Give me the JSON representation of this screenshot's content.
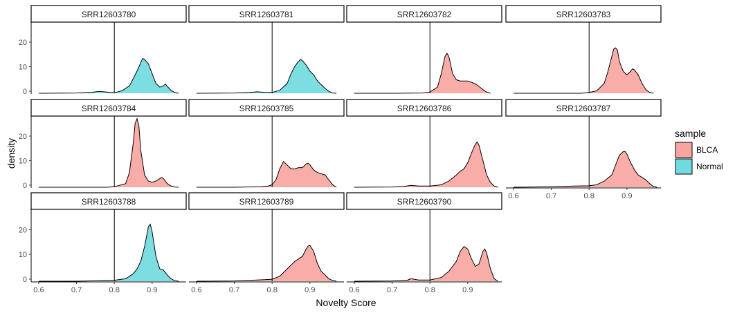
{
  "chart_data": {
    "type": "area",
    "xlabel": "Novelty Score",
    "ylabel": "density",
    "vline": 0.8,
    "xlim": [
      0.58,
      0.99
    ],
    "ylim": [
      0,
      29
    ],
    "x_ticks": [
      "0.6",
      "0.7",
      "0.8",
      "0.9"
    ],
    "y_ticks": [
      "0",
      "10",
      "20"
    ],
    "legend": {
      "title": "sample",
      "position": "right",
      "entries": [
        {
          "label": "BLCA",
          "color": "#F8A4A0"
        },
        {
          "label": "Normal",
          "color": "#6FDADF"
        }
      ]
    },
    "panels": [
      {
        "id": "SRR12603780",
        "group": "Normal",
        "curve": [
          [
            0.6,
            0
          ],
          [
            0.7,
            0.1
          ],
          [
            0.74,
            0.4
          ],
          [
            0.76,
            0.8
          ],
          [
            0.78,
            0.5
          ],
          [
            0.8,
            0.2
          ],
          [
            0.82,
            1.0
          ],
          [
            0.84,
            3.0
          ],
          [
            0.86,
            9.0
          ],
          [
            0.87,
            12.5
          ],
          [
            0.875,
            14.2
          ],
          [
            0.88,
            13.8
          ],
          [
            0.89,
            12.0
          ],
          [
            0.9,
            8.0
          ],
          [
            0.91,
            4.0
          ],
          [
            0.92,
            2.5
          ],
          [
            0.93,
            3.0
          ],
          [
            0.935,
            3.8
          ],
          [
            0.94,
            2.8
          ],
          [
            0.95,
            1.2
          ],
          [
            0.96,
            0.3
          ],
          [
            0.97,
            0
          ]
        ]
      },
      {
        "id": "SRR12603781",
        "group": "Normal",
        "curve": [
          [
            0.6,
            0
          ],
          [
            0.7,
            0.1
          ],
          [
            0.74,
            0.3
          ],
          [
            0.76,
            0.6
          ],
          [
            0.78,
            0.4
          ],
          [
            0.8,
            0.3
          ],
          [
            0.82,
            1.2
          ],
          [
            0.84,
            4.0
          ],
          [
            0.85,
            8.0
          ],
          [
            0.86,
            11.0
          ],
          [
            0.87,
            13.0
          ],
          [
            0.875,
            13.8
          ],
          [
            0.88,
            13.3
          ],
          [
            0.89,
            11.5
          ],
          [
            0.9,
            9.0
          ],
          [
            0.91,
            7.5
          ],
          [
            0.92,
            5.0
          ],
          [
            0.93,
            3.5
          ],
          [
            0.94,
            2.0
          ],
          [
            0.95,
            0.8
          ],
          [
            0.96,
            0.1
          ],
          [
            0.97,
            0
          ]
        ]
      },
      {
        "id": "SRR12603782",
        "group": "BLCA",
        "curve": [
          [
            0.6,
            0
          ],
          [
            0.7,
            0
          ],
          [
            0.78,
            0.1
          ],
          [
            0.8,
            0.5
          ],
          [
            0.82,
            2.5
          ],
          [
            0.83,
            8.0
          ],
          [
            0.84,
            15.0
          ],
          [
            0.845,
            16.3
          ],
          [
            0.85,
            15.0
          ],
          [
            0.86,
            8.0
          ],
          [
            0.87,
            5.5
          ],
          [
            0.88,
            5.0
          ],
          [
            0.89,
            5.0
          ],
          [
            0.9,
            5.0
          ],
          [
            0.91,
            4.5
          ],
          [
            0.92,
            3.8
          ],
          [
            0.93,
            2.8
          ],
          [
            0.94,
            1.5
          ],
          [
            0.95,
            0.5
          ],
          [
            0.96,
            0
          ]
        ]
      },
      {
        "id": "SRR12603783",
        "group": "BLCA",
        "curve": [
          [
            0.6,
            0
          ],
          [
            0.7,
            0
          ],
          [
            0.78,
            0
          ],
          [
            0.8,
            0.3
          ],
          [
            0.82,
            1.0
          ],
          [
            0.84,
            4.0
          ],
          [
            0.85,
            9.0
          ],
          [
            0.86,
            15.0
          ],
          [
            0.865,
            18.0
          ],
          [
            0.87,
            18.5
          ],
          [
            0.875,
            17.5
          ],
          [
            0.88,
            13.0
          ],
          [
            0.89,
            9.0
          ],
          [
            0.9,
            7.5
          ],
          [
            0.91,
            9.0
          ],
          [
            0.915,
            10.0
          ],
          [
            0.92,
            9.5
          ],
          [
            0.93,
            7.5
          ],
          [
            0.94,
            4.0
          ],
          [
            0.95,
            1.5
          ],
          [
            0.96,
            0.3
          ],
          [
            0.97,
            0
          ]
        ]
      },
      {
        "id": "SRR12603784",
        "group": "BLCA",
        "curve": [
          [
            0.6,
            0
          ],
          [
            0.7,
            0
          ],
          [
            0.78,
            0
          ],
          [
            0.8,
            0.2
          ],
          [
            0.83,
            1.5
          ],
          [
            0.84,
            6.0
          ],
          [
            0.85,
            18.0
          ],
          [
            0.855,
            26.0
          ],
          [
            0.86,
            28.0
          ],
          [
            0.865,
            25.0
          ],
          [
            0.87,
            15.0
          ],
          [
            0.88,
            5.0
          ],
          [
            0.89,
            2.5
          ],
          [
            0.9,
            2.0
          ],
          [
            0.91,
            2.5
          ],
          [
            0.92,
            3.5
          ],
          [
            0.925,
            4.0
          ],
          [
            0.93,
            3.5
          ],
          [
            0.94,
            1.5
          ],
          [
            0.95,
            0.5
          ],
          [
            0.96,
            0.1
          ],
          [
            0.97,
            0
          ]
        ]
      },
      {
        "id": "SRR12603785",
        "group": "BLCA",
        "curve": [
          [
            0.6,
            0
          ],
          [
            0.7,
            0
          ],
          [
            0.77,
            0.2
          ],
          [
            0.79,
            0.5
          ],
          [
            0.8,
            1.0
          ],
          [
            0.81,
            3.0
          ],
          [
            0.82,
            7.5
          ],
          [
            0.83,
            10.5
          ],
          [
            0.84,
            9.0
          ],
          [
            0.85,
            7.5
          ],
          [
            0.86,
            7.5
          ],
          [
            0.87,
            8.0
          ],
          [
            0.88,
            8.0
          ],
          [
            0.89,
            9.5
          ],
          [
            0.895,
            9.8
          ],
          [
            0.9,
            9.2
          ],
          [
            0.91,
            7.0
          ],
          [
            0.92,
            6.0
          ],
          [
            0.93,
            5.5
          ],
          [
            0.94,
            5.0
          ],
          [
            0.95,
            3.0
          ],
          [
            0.96,
            1.0
          ],
          [
            0.97,
            0
          ]
        ]
      },
      {
        "id": "SRR12603786",
        "group": "BLCA",
        "curve": [
          [
            0.6,
            0
          ],
          [
            0.7,
            0.1
          ],
          [
            0.73,
            0.3
          ],
          [
            0.75,
            0.8
          ],
          [
            0.77,
            0.5
          ],
          [
            0.8,
            0.5
          ],
          [
            0.83,
            1.0
          ],
          [
            0.85,
            2.5
          ],
          [
            0.87,
            5.0
          ],
          [
            0.88,
            6.5
          ],
          [
            0.89,
            7.5
          ],
          [
            0.9,
            10.0
          ],
          [
            0.91,
            14.0
          ],
          [
            0.92,
            17.5
          ],
          [
            0.925,
            18.5
          ],
          [
            0.93,
            17.0
          ],
          [
            0.94,
            11.0
          ],
          [
            0.95,
            5.0
          ],
          [
            0.96,
            2.0
          ],
          [
            0.97,
            0.5
          ],
          [
            0.98,
            0
          ]
        ]
      },
      {
        "id": "SRR12603787",
        "group": "BLCA",
        "curve": [
          [
            0.6,
            0
          ],
          [
            0.7,
            0.2
          ],
          [
            0.76,
            0.5
          ],
          [
            0.8,
            0.6
          ],
          [
            0.82,
            1.0
          ],
          [
            0.84,
            2.5
          ],
          [
            0.86,
            5.0
          ],
          [
            0.87,
            9.0
          ],
          [
            0.88,
            13.0
          ],
          [
            0.89,
            14.5
          ],
          [
            0.895,
            14.6
          ],
          [
            0.9,
            13.5
          ],
          [
            0.91,
            10.0
          ],
          [
            0.92,
            7.0
          ],
          [
            0.93,
            5.0
          ],
          [
            0.94,
            4.0
          ],
          [
            0.95,
            3.0
          ],
          [
            0.96,
            1.5
          ],
          [
            0.97,
            0.3
          ],
          [
            0.98,
            0
          ]
        ]
      },
      {
        "id": "SRR12603788",
        "group": "Normal",
        "curve": [
          [
            0.6,
            0
          ],
          [
            0.7,
            0
          ],
          [
            0.76,
            0.2
          ],
          [
            0.8,
            0.4
          ],
          [
            0.83,
            1.0
          ],
          [
            0.85,
            3.0
          ],
          [
            0.86,
            5.0
          ],
          [
            0.87,
            8.0
          ],
          [
            0.88,
            14.0
          ],
          [
            0.89,
            22.0
          ],
          [
            0.895,
            23.0
          ],
          [
            0.9,
            20.0
          ],
          [
            0.91,
            10.0
          ],
          [
            0.92,
            5.0
          ],
          [
            0.93,
            4.5
          ],
          [
            0.94,
            2.5
          ],
          [
            0.95,
            1.0
          ],
          [
            0.96,
            0.2
          ],
          [
            0.97,
            0
          ]
        ]
      },
      {
        "id": "SRR12603789",
        "group": "BLCA",
        "curve": [
          [
            0.6,
            0
          ],
          [
            0.7,
            0.1
          ],
          [
            0.76,
            0.5
          ],
          [
            0.78,
            0.6
          ],
          [
            0.8,
            0.8
          ],
          [
            0.82,
            2.0
          ],
          [
            0.84,
            5.0
          ],
          [
            0.86,
            8.0
          ],
          [
            0.87,
            9.0
          ],
          [
            0.88,
            10.0
          ],
          [
            0.89,
            13.0
          ],
          [
            0.895,
            14.2
          ],
          [
            0.9,
            14.5
          ],
          [
            0.91,
            12.0
          ],
          [
            0.92,
            7.0
          ],
          [
            0.93,
            4.0
          ],
          [
            0.94,
            2.5
          ],
          [
            0.95,
            1.0
          ],
          [
            0.96,
            0.3
          ],
          [
            0.97,
            0
          ]
        ]
      },
      {
        "id": "SRR12603790",
        "group": "BLCA",
        "curve": [
          [
            0.6,
            0
          ],
          [
            0.7,
            0.1
          ],
          [
            0.74,
            0.4
          ],
          [
            0.75,
            1.0
          ],
          [
            0.77,
            0.5
          ],
          [
            0.8,
            0.5
          ],
          [
            0.83,
            1.5
          ],
          [
            0.85,
            4.0
          ],
          [
            0.87,
            8.0
          ],
          [
            0.88,
            12.0
          ],
          [
            0.89,
            14.0
          ],
          [
            0.9,
            13.0
          ],
          [
            0.91,
            9.0
          ],
          [
            0.92,
            6.0
          ],
          [
            0.93,
            7.0
          ],
          [
            0.94,
            12.0
          ],
          [
            0.945,
            13.0
          ],
          [
            0.95,
            11.5
          ],
          [
            0.96,
            5.0
          ],
          [
            0.97,
            1.0
          ],
          [
            0.98,
            0
          ]
        ]
      }
    ]
  }
}
